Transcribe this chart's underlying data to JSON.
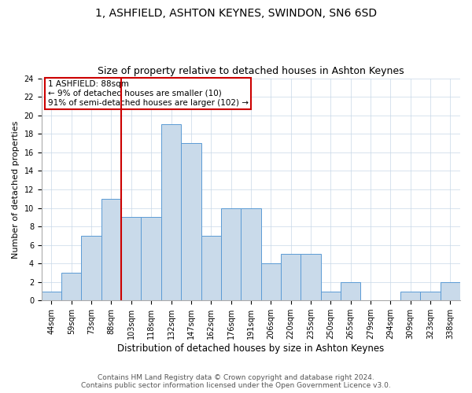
{
  "title": "1, ASHFIELD, ASHTON KEYNES, SWINDON, SN6 6SD",
  "subtitle": "Size of property relative to detached houses in Ashton Keynes",
  "xlabel": "Distribution of detached houses by size in Ashton Keynes",
  "ylabel": "Number of detached properties",
  "categories": [
    "44sqm",
    "59sqm",
    "73sqm",
    "88sqm",
    "103sqm",
    "118sqm",
    "132sqm",
    "147sqm",
    "162sqm",
    "176sqm",
    "191sqm",
    "206sqm",
    "220sqm",
    "235sqm",
    "250sqm",
    "265sqm",
    "279sqm",
    "294sqm",
    "309sqm",
    "323sqm",
    "338sqm"
  ],
  "values": [
    1,
    3,
    7,
    11,
    9,
    9,
    19,
    17,
    7,
    10,
    10,
    4,
    5,
    5,
    1,
    2,
    0,
    0,
    1,
    1,
    2
  ],
  "bar_color": "#c9daea",
  "bar_edge_color": "#5b9bd5",
  "vline_x_index": 3,
  "vline_color": "#cc0000",
  "annotation_text_line1": "1 ASHFIELD: 88sqm",
  "annotation_text_line2": "← 9% of detached houses are smaller (10)",
  "annotation_text_line3": "91% of semi-detached houses are larger (102) →",
  "annotation_box_color": "#cc0000",
  "ylim": [
    0,
    24
  ],
  "yticks": [
    0,
    2,
    4,
    6,
    8,
    10,
    12,
    14,
    16,
    18,
    20,
    22,
    24
  ],
  "footnote1": "Contains HM Land Registry data © Crown copyright and database right 2024.",
  "footnote2": "Contains public sector information licensed under the Open Government Licence v3.0.",
  "bg_color": "#ffffff",
  "grid_color": "#c8d8e8",
  "title_fontsize": 10,
  "subtitle_fontsize": 9,
  "xlabel_fontsize": 8.5,
  "ylabel_fontsize": 8,
  "tick_fontsize": 7,
  "footnote_fontsize": 6.5,
  "annotation_fontsize": 7.5
}
